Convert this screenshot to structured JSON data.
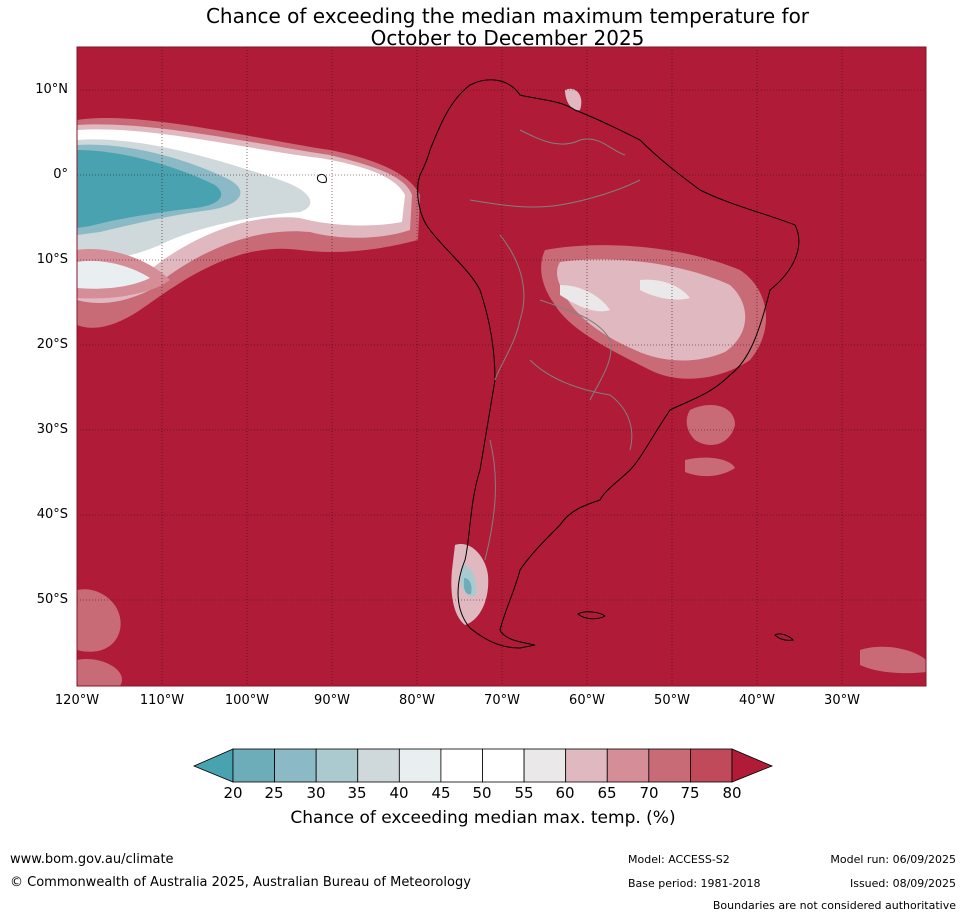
{
  "title": {
    "line1": "Chance of exceeding the median maximum temperature for",
    "line2": "October to December 2025"
  },
  "map": {
    "lat_ticks": [
      "10°N",
      "0°",
      "10°S",
      "20°S",
      "30°S",
      "40°S",
      "50°S"
    ],
    "lon_ticks": [
      "120°W",
      "110°W",
      "100°W",
      "90°W",
      "80°W",
      "70°W",
      "60°W",
      "50°W",
      "40°W",
      "30°W"
    ],
    "colors": {
      "background_fill": "#b01c37",
      "ocean_border": "#7f1527",
      "coast": "#000000",
      "boundaries": "#808080"
    }
  },
  "colorbar": {
    "labels": [
      "20",
      "25",
      "30",
      "35",
      "40",
      "45",
      "50",
      "55",
      "60",
      "65",
      "70",
      "75",
      "80"
    ],
    "colors": [
      "#48a2b0",
      "#6dacb9",
      "#8bb9c5",
      "#aacacf",
      "#cfd8db",
      "#e9eff1",
      "#ffffff",
      "#ffffff",
      "#eae8e9",
      "#e0b9c0",
      "#d58d97",
      "#c96b77",
      "#c14a5a",
      "#b01c37"
    ],
    "title": "Chance of exceeding median max. temp. (%)"
  },
  "footer": {
    "url": "www.bom.gov.au/climate",
    "copyright": "© Commonwealth of Australia 2025, Australian Bureau of Meteorology",
    "model": "Model: ACCESS-S2",
    "base_period": "Base period: 1981-2018",
    "model_run": "Model run: 06/09/2025",
    "issued": "Issued: 08/09/2025",
    "disclaimer": "Boundaries are not considered authoritative"
  }
}
